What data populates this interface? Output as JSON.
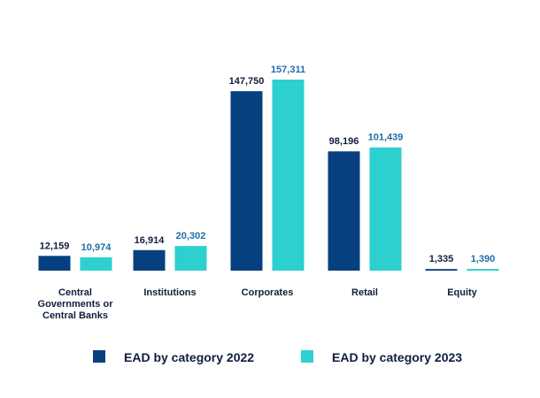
{
  "chart_data": {
    "type": "bar",
    "title": "",
    "xlabel": "",
    "ylabel": "",
    "ylim": [
      0,
      170000
    ],
    "categories": [
      [
        "Central",
        "Governments or",
        "Central Banks"
      ],
      [
        "Institutions"
      ],
      [
        "Corporates"
      ],
      [
        "Retail"
      ],
      [
        "Equity"
      ]
    ],
    "series": [
      {
        "name": "EAD by category 2022",
        "color": "#06407e",
        "label_color": "#0f1f3d",
        "values": [
          12159,
          16914,
          147750,
          98196,
          1335
        ],
        "labels": [
          "12,159",
          "16,914",
          "147,750",
          "98,196",
          "1,335"
        ]
      },
      {
        "name": "EAD by category 2023",
        "color": "#2ecfcf",
        "label_color": "#1f6ea8",
        "values": [
          10974,
          20302,
          157311,
          101439,
          1390
        ],
        "labels": [
          "10,974",
          "20,302",
          "157,311",
          "101,439",
          "1,390"
        ]
      }
    ],
    "legend_position": "bottom"
  }
}
